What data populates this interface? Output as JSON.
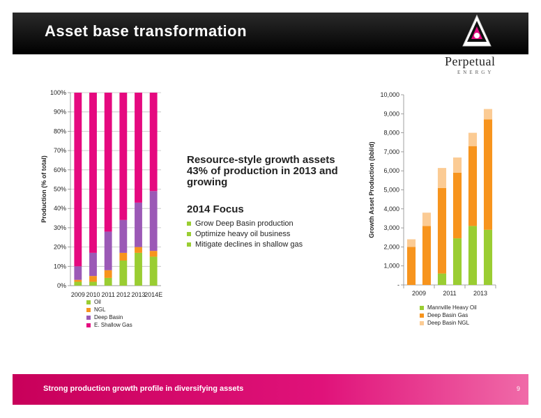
{
  "slide": {
    "title": "Asset base transformation",
    "logo_name": "Perpetual",
    "logo_sub": "ENERGY",
    "headline": "Resource-style growth assets 43% of production in 2013 and growing",
    "focus_title": "2014 Focus",
    "focus_items": [
      "Grow Deep Basin production",
      "Optimize heavy oil business",
      "Mitigate declines in shallow gas"
    ],
    "footer": "Strong production growth profile in diversifying assets",
    "page_number": "9"
  },
  "colors": {
    "oil": "#9acd32",
    "ngl": "#f7941d",
    "deep_basin": "#9b59b6",
    "shallow_gas": "#e5097f",
    "deep_basin_ngl": "#fbcb94",
    "title_bar": "#000000",
    "footer_bar": "#d6006d"
  },
  "chart_data": [
    {
      "type": "bar",
      "stacked": true,
      "ylabel": "Production (% of total)",
      "categories": [
        "2009",
        "2010",
        "2011",
        "2012",
        "2013",
        "2014E"
      ],
      "yticks": [
        "0%",
        "10%",
        "20%",
        "30%",
        "40%",
        "50%",
        "60%",
        "70%",
        "80%",
        "90%",
        "100%"
      ],
      "ylim": [
        0,
        100
      ],
      "grid": true,
      "legend_position": "bottom",
      "series": [
        {
          "name": "Oil",
          "color_key": "oil",
          "values": [
            2,
            2,
            4,
            13,
            17,
            15
          ]
        },
        {
          "name": "NGL",
          "color_key": "ngl",
          "values": [
            1,
            3,
            4,
            4,
            3,
            3
          ]
        },
        {
          "name": "Deep Basin",
          "color_key": "deep_basin",
          "values": [
            7,
            12,
            20,
            17,
            23,
            31
          ]
        },
        {
          "name": "E. Shallow Gas",
          "color_key": "shallow_gas",
          "values": [
            90,
            83,
            72,
            66,
            57,
            51
          ]
        }
      ]
    },
    {
      "type": "bar",
      "stacked": true,
      "ylabel": "Growth Asset Production (bbl/d)",
      "categories": [
        "2009",
        "",
        "2011",
        "",
        "2013",
        ""
      ],
      "yticks": [
        "-",
        "1,000",
        "2,000",
        "3,000",
        "4,000",
        "5,000",
        "6,000",
        "7,000",
        "8,000",
        "9,000",
        "10,000"
      ],
      "ylim": [
        0,
        10000
      ],
      "grid": false,
      "legend_position": "bottom",
      "series": [
        {
          "name": "Mannville Heavy Oil",
          "color_key": "oil",
          "values": [
            0,
            0,
            600,
            2450,
            3100,
            2900
          ]
        },
        {
          "name": "Deep Basin Gas",
          "color_key": "ngl",
          "values": [
            2000,
            3100,
            4500,
            3450,
            4200,
            5800
          ]
        },
        {
          "name": "Deep Basin NGL",
          "color_key": "deep_basin_ngl",
          "values": [
            400,
            700,
            1050,
            800,
            700,
            550
          ]
        }
      ]
    }
  ]
}
